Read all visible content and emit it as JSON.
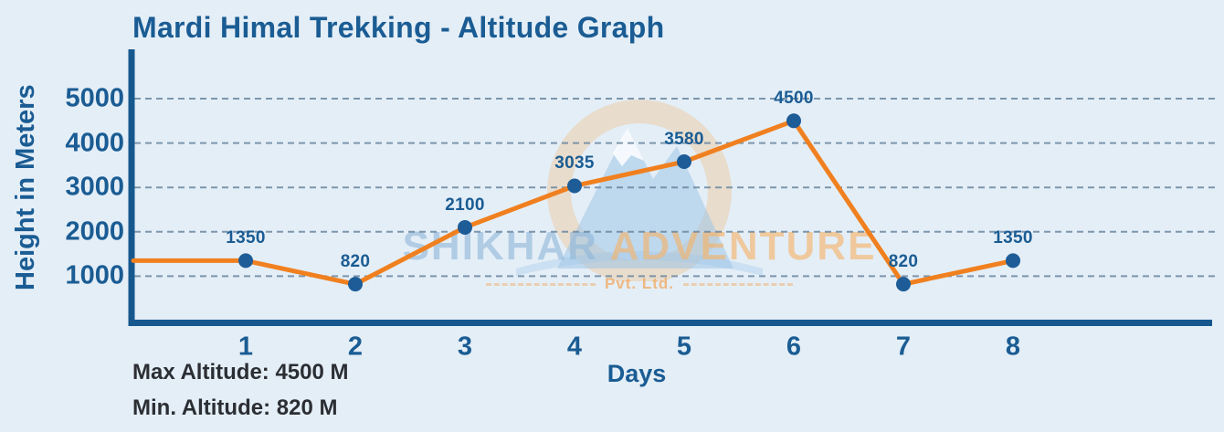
{
  "chart_data": {
    "type": "line",
    "title": "Mardi Himal Trekking - Altitude Graph",
    "xlabel": "Days",
    "ylabel": "Height in Meters",
    "categories": [
      "1",
      "2",
      "3",
      "4",
      "5",
      "6",
      "7",
      "8"
    ],
    "values": [
      1350,
      820,
      2100,
      3035,
      3580,
      4500,
      820,
      1350
    ],
    "yticks": [
      1000,
      2000,
      3000,
      4000,
      5000
    ],
    "ylim": [
      0,
      6000
    ],
    "grid": "horizontal-dashed",
    "legend": "none",
    "line_starts_at_y_axis_value": 1350,
    "point_labels": [
      "1350",
      "820",
      "2100",
      "3035",
      "3580",
      "4500",
      "820",
      "1350"
    ]
  },
  "watermark": {
    "brand_first": "SHIKHAR",
    "brand_second": " ADVENTURE",
    "subtitle": "Pvt. Ltd."
  },
  "footer": {
    "max_altitude_label": "Max Altitude: 4500 M",
    "min_altitude_label": "Min. Altitude: 820 M"
  },
  "colors": {
    "background": "#E4EEF7",
    "axis": "#16588E",
    "text_blue": "#1A5C93",
    "line_orange": "#F0801F",
    "marker_blue": "#1D5C97",
    "grid": "#6B87A0",
    "footer_text": "#2B2E33"
  }
}
